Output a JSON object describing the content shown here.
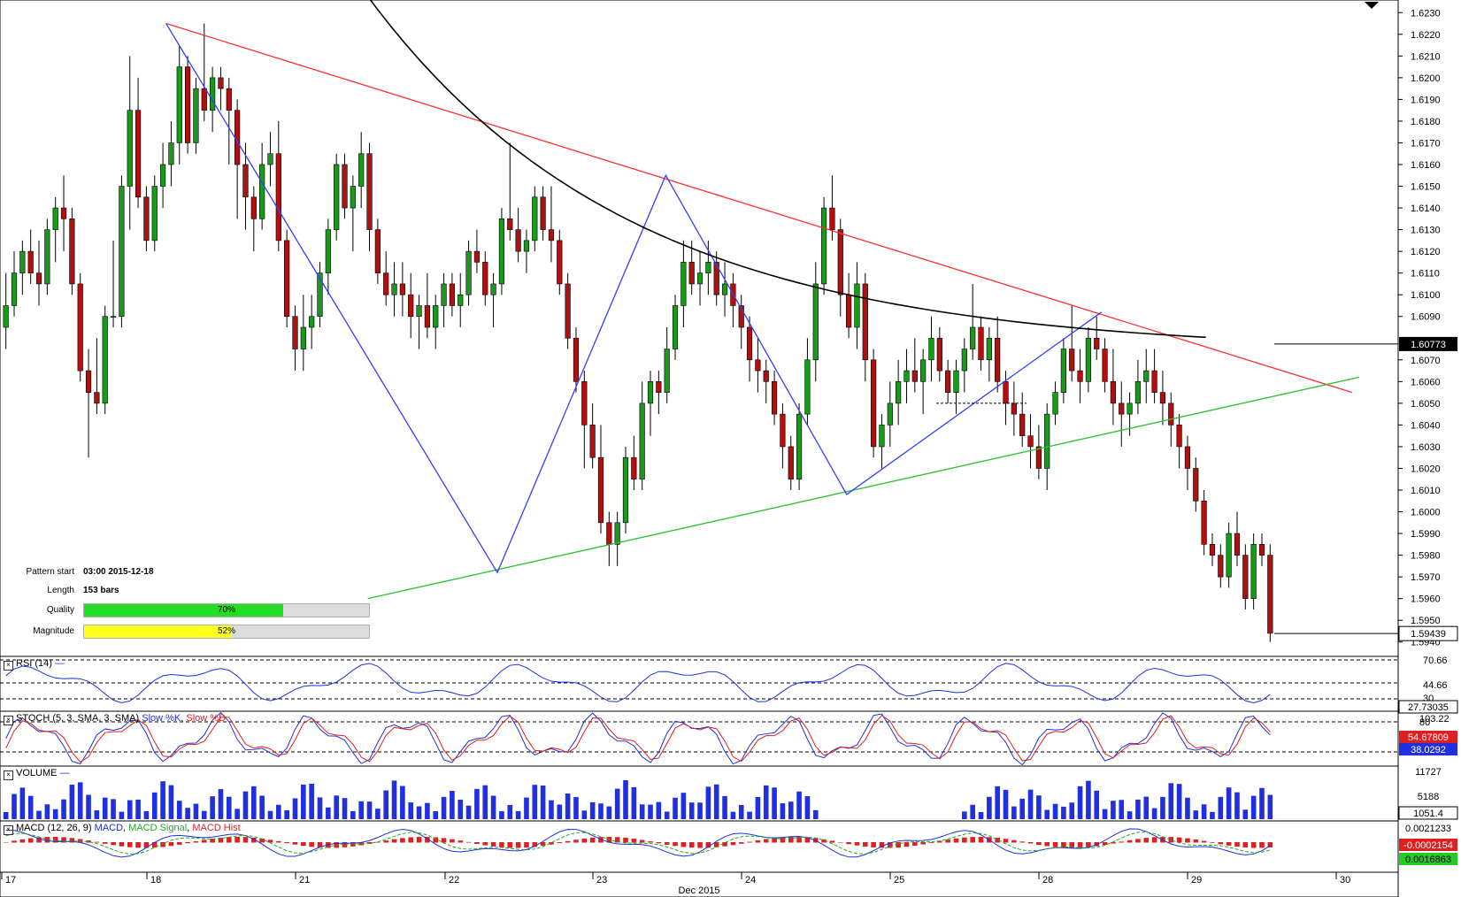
{
  "chart_data": {
    "type": "candlestick",
    "instrument_price_axis": [
      "1.6230",
      "1.6220",
      "1.6210",
      "1.6200",
      "1.6190",
      "1.6180",
      "1.6170",
      "1.6160",
      "1.6150",
      "1.6140",
      "1.6130",
      "1.6120",
      "1.6110",
      "1.6100",
      "1.6090",
      "1.6070",
      "1.6060",
      "1.6050",
      "1.6040",
      "1.6030",
      "1.6020",
      "1.6010",
      "1.6000",
      "1.5990",
      "1.5980",
      "1.5970",
      "1.5960",
      "1.5950",
      "1.5940"
    ],
    "ylim": [
      1.5935,
      1.6235
    ],
    "x_ticks": [
      "17",
      "18",
      "21",
      "22",
      "23",
      "24",
      "25",
      "28",
      "29",
      "30"
    ],
    "x_month_label": "Dec 2015",
    "price_tags": {
      "sma_last": "1.60773",
      "last_price": "1.59439"
    },
    "candles": [
      [
        1.6085,
        1.611,
        1.6075,
        1.6095
      ],
      [
        1.6095,
        1.612,
        1.609,
        1.611
      ],
      [
        1.611,
        1.6125,
        1.61,
        1.612
      ],
      [
        1.612,
        1.613,
        1.6105,
        1.611
      ],
      [
        1.611,
        1.6125,
        1.6095,
        1.6105
      ],
      [
        1.6105,
        1.6135,
        1.61,
        1.613
      ],
      [
        1.613,
        1.6145,
        1.6115,
        1.614
      ],
      [
        1.614,
        1.6155,
        1.612,
        1.6135
      ],
      [
        1.6135,
        1.614,
        1.61,
        1.6105
      ],
      [
        1.6105,
        1.611,
        1.606,
        1.6065
      ],
      [
        1.6065,
        1.6075,
        1.6025,
        1.6055
      ],
      [
        1.6055,
        1.608,
        1.6045,
        1.605
      ],
      [
        1.605,
        1.6095,
        1.6045,
        1.609
      ],
      [
        1.609,
        1.6125,
        1.6085,
        1.609
      ],
      [
        1.609,
        1.6155,
        1.6085,
        1.615
      ],
      [
        1.615,
        1.621,
        1.613,
        1.6185
      ],
      [
        1.6185,
        1.62,
        1.614,
        1.6145
      ],
      [
        1.6145,
        1.615,
        1.612,
        1.6125
      ],
      [
        1.6125,
        1.6155,
        1.612,
        1.615
      ],
      [
        1.615,
        1.617,
        1.614,
        1.616
      ],
      [
        1.616,
        1.618,
        1.615,
        1.617
      ],
      [
        1.617,
        1.6215,
        1.616,
        1.6205
      ],
      [
        1.6205,
        1.621,
        1.6165,
        1.617
      ],
      [
        1.617,
        1.62,
        1.6165,
        1.6195
      ],
      [
        1.6195,
        1.6225,
        1.618,
        1.6185
      ],
      [
        1.6185,
        1.6205,
        1.6175,
        1.62
      ],
      [
        1.62,
        1.6205,
        1.6185,
        1.6195
      ],
      [
        1.6195,
        1.62,
        1.616,
        1.6185
      ],
      [
        1.6185,
        1.619,
        1.6135,
        1.616
      ],
      [
        1.616,
        1.617,
        1.613,
        1.6145
      ],
      [
        1.6145,
        1.615,
        1.612,
        1.6135
      ],
      [
        1.6135,
        1.617,
        1.613,
        1.616
      ],
      [
        1.616,
        1.6175,
        1.615,
        1.6165
      ],
      [
        1.6165,
        1.618,
        1.612,
        1.6125
      ],
      [
        1.6125,
        1.613,
        1.6085,
        1.609
      ],
      [
        1.609,
        1.6095,
        1.6065,
        1.6075
      ],
      [
        1.6075,
        1.61,
        1.6065,
        1.6085
      ],
      [
        1.6085,
        1.61,
        1.6075,
        1.609
      ],
      [
        1.609,
        1.6115,
        1.6085,
        1.611
      ],
      [
        1.611,
        1.6135,
        1.61,
        1.613
      ],
      [
        1.613,
        1.6165,
        1.6125,
        1.616
      ],
      [
        1.616,
        1.6165,
        1.6135,
        1.614
      ],
      [
        1.614,
        1.6155,
        1.612,
        1.615
      ],
      [
        1.615,
        1.6175,
        1.614,
        1.6165
      ],
      [
        1.6165,
        1.617,
        1.612,
        1.613
      ],
      [
        1.613,
        1.6135,
        1.6105,
        1.611
      ],
      [
        1.611,
        1.612,
        1.6095,
        1.61
      ],
      [
        1.61,
        1.6115,
        1.609,
        1.6105
      ],
      [
        1.6105,
        1.6115,
        1.609,
        1.61
      ],
      [
        1.61,
        1.611,
        1.608,
        1.609
      ],
      [
        1.609,
        1.61,
        1.6075,
        1.6095
      ],
      [
        1.6095,
        1.611,
        1.608,
        1.6085
      ],
      [
        1.6085,
        1.61,
        1.6075,
        1.6095
      ],
      [
        1.6095,
        1.611,
        1.6085,
        1.6105
      ],
      [
        1.6105,
        1.611,
        1.609,
        1.6095
      ],
      [
        1.6095,
        1.611,
        1.6085,
        1.61
      ],
      [
        1.61,
        1.6125,
        1.6095,
        1.612
      ],
      [
        1.612,
        1.613,
        1.611,
        1.6115
      ],
      [
        1.6115,
        1.612,
        1.6095,
        1.61
      ],
      [
        1.61,
        1.611,
        1.6085,
        1.6105
      ],
      [
        1.6105,
        1.614,
        1.61,
        1.6135
      ],
      [
        1.6135,
        1.617,
        1.6125,
        1.613
      ],
      [
        1.613,
        1.614,
        1.6115,
        1.612
      ],
      [
        1.612,
        1.613,
        1.611,
        1.6125
      ],
      [
        1.6125,
        1.615,
        1.612,
        1.6145
      ],
      [
        1.6145,
        1.615,
        1.6125,
        1.613
      ],
      [
        1.613,
        1.615,
        1.6115,
        1.6125
      ],
      [
        1.6125,
        1.613,
        1.61,
        1.6105
      ],
      [
        1.6105,
        1.611,
        1.6075,
        1.608
      ],
      [
        1.608,
        1.6085,
        1.6055,
        1.606
      ],
      [
        1.606,
        1.6065,
        1.602,
        1.604
      ],
      [
        1.604,
        1.605,
        1.602,
        1.6025
      ],
      [
        1.6025,
        1.604,
        1.599,
        1.5995
      ],
      [
        1.5995,
        1.6,
        1.5975,
        1.5985
      ],
      [
        1.5985,
        1.6,
        1.5975,
        1.5995
      ],
      [
        1.5995,
        1.603,
        1.599,
        1.6025
      ],
      [
        1.6025,
        1.6035,
        1.601,
        1.6015
      ],
      [
        1.6015,
        1.606,
        1.601,
        1.605
      ],
      [
        1.605,
        1.6065,
        1.6035,
        1.606
      ],
      [
        1.606,
        1.6065,
        1.6045,
        1.6055
      ],
      [
        1.6055,
        1.6085,
        1.605,
        1.6075
      ],
      [
        1.6075,
        1.61,
        1.607,
        1.6095
      ],
      [
        1.6095,
        1.6125,
        1.6085,
        1.6115
      ],
      [
        1.6115,
        1.6125,
        1.61,
        1.6105
      ],
      [
        1.6105,
        1.612,
        1.6095,
        1.611
      ],
      [
        1.611,
        1.6125,
        1.61,
        1.6115
      ],
      [
        1.6115,
        1.612,
        1.6095,
        1.61
      ],
      [
        1.61,
        1.6115,
        1.609,
        1.6105
      ],
      [
        1.6105,
        1.611,
        1.6085,
        1.6095
      ],
      [
        1.6095,
        1.61,
        1.6075,
        1.6085
      ],
      [
        1.6085,
        1.609,
        1.606,
        1.607
      ],
      [
        1.607,
        1.608,
        1.6055,
        1.6065
      ],
      [
        1.6065,
        1.607,
        1.605,
        1.606
      ],
      [
        1.606,
        1.6065,
        1.604,
        1.6045
      ],
      [
        1.6045,
        1.605,
        1.602,
        1.603
      ],
      [
        1.603,
        1.6035,
        1.601,
        1.6015
      ],
      [
        1.6015,
        1.605,
        1.601,
        1.6045
      ],
      [
        1.6045,
        1.608,
        1.604,
        1.607
      ],
      [
        1.607,
        1.6115,
        1.606,
        1.6105
      ],
      [
        1.6105,
        1.6145,
        1.61,
        1.614
      ],
      [
        1.614,
        1.6155,
        1.6125,
        1.613
      ],
      [
        1.613,
        1.6135,
        1.609,
        1.61
      ],
      [
        1.61,
        1.611,
        1.608,
        1.6085
      ],
      [
        1.6085,
        1.6115,
        1.6075,
        1.6105
      ],
      [
        1.6105,
        1.611,
        1.606,
        1.607
      ],
      [
        1.607,
        1.6075,
        1.6025,
        1.603
      ],
      [
        1.603,
        1.6045,
        1.602,
        1.604
      ],
      [
        1.604,
        1.606,
        1.603,
        1.605
      ],
      [
        1.605,
        1.607,
        1.604,
        1.606
      ],
      [
        1.606,
        1.6075,
        1.605,
        1.6065
      ],
      [
        1.6065,
        1.608,
        1.6055,
        1.606
      ],
      [
        1.606,
        1.6075,
        1.6045,
        1.607
      ],
      [
        1.607,
        1.609,
        1.606,
        1.608
      ],
      [
        1.608,
        1.6085,
        1.606,
        1.6065
      ],
      [
        1.6065,
        1.607,
        1.605,
        1.6055
      ],
      [
        1.6055,
        1.607,
        1.6045,
        1.6065
      ],
      [
        1.6065,
        1.608,
        1.6055,
        1.6075
      ],
      [
        1.6075,
        1.6105,
        1.607,
        1.6085
      ],
      [
        1.6085,
        1.609,
        1.6065,
        1.607
      ],
      [
        1.607,
        1.6085,
        1.606,
        1.608
      ],
      [
        1.608,
        1.609,
        1.6055,
        1.606
      ],
      [
        1.606,
        1.6065,
        1.604,
        1.605
      ],
      [
        1.605,
        1.606,
        1.6035,
        1.6045
      ],
      [
        1.6045,
        1.6055,
        1.603,
        1.6035
      ],
      [
        1.6035,
        1.6045,
        1.602,
        1.603
      ],
      [
        1.603,
        1.604,
        1.6015,
        1.602
      ],
      [
        1.602,
        1.605,
        1.601,
        1.6045
      ],
      [
        1.6045,
        1.606,
        1.604,
        1.6055
      ],
      [
        1.6055,
        1.608,
        1.605,
        1.6075
      ],
      [
        1.6075,
        1.6095,
        1.606,
        1.6065
      ],
      [
        1.6065,
        1.6075,
        1.605,
        1.606
      ],
      [
        1.606,
        1.6085,
        1.6055,
        1.608
      ],
      [
        1.608,
        1.609,
        1.607,
        1.6075
      ],
      [
        1.6075,
        1.608,
        1.6055,
        1.606
      ],
      [
        1.606,
        1.6075,
        1.604,
        1.605
      ],
      [
        1.605,
        1.606,
        1.603,
        1.6045
      ],
      [
        1.6045,
        1.6055,
        1.6035,
        1.605
      ],
      [
        1.605,
        1.607,
        1.6045,
        1.606
      ],
      [
        1.606,
        1.6075,
        1.605,
        1.6065
      ],
      [
        1.6065,
        1.6075,
        1.605,
        1.6055
      ],
      [
        1.6055,
        1.6065,
        1.604,
        1.605
      ],
      [
        1.605,
        1.6055,
        1.603,
        1.604
      ],
      [
        1.604,
        1.6045,
        1.602,
        1.603
      ],
      [
        1.603,
        1.6035,
        1.601,
        1.602
      ],
      [
        1.602,
        1.6025,
        1.6,
        1.6005
      ],
      [
        1.6005,
        1.601,
        1.598,
        1.5985
      ],
      [
        1.5985,
        1.599,
        1.5975,
        1.598
      ],
      [
        1.598,
        1.5985,
        1.5965,
        1.597
      ],
      [
        1.597,
        1.5995,
        1.5965,
        1.599
      ],
      [
        1.599,
        1.6,
        1.5975,
        1.598
      ],
      [
        1.598,
        1.5985,
        1.5955,
        1.596
      ],
      [
        1.596,
        1.599,
        1.5955,
        1.5985
      ],
      [
        1.5985,
        1.599,
        1.5975,
        1.598
      ],
      [
        1.598,
        1.5985,
        1.594,
        1.5944
      ]
    ],
    "trendlines": [
      {
        "name": "upper-resistance",
        "color": "#ff3030",
        "points": [
          [
            0.118,
            1.6225
          ],
          [
            0.97,
            1.6055
          ]
        ]
      },
      {
        "name": "lower-support",
        "color": "#30c030",
        "points": [
          [
            0.263,
            1.596
          ],
          [
            0.975,
            1.6062
          ]
        ]
      }
    ],
    "zigzag": {
      "color": "#3040ff",
      "points": [
        [
          0.118,
          1.6225
        ],
        [
          0.356,
          1.5972
        ],
        [
          0.477,
          1.6155
        ],
        [
          0.607,
          1.6008
        ],
        [
          0.79,
          1.6092
        ]
      ]
    },
    "sma_200_color": "#000000",
    "panels": {
      "rsi": {
        "label": "RSI (14)",
        "levels": [
          "70.66",
          "44.66",
          "30"
        ],
        "last": "27.73035"
      },
      "stoch": {
        "label": "STOCH (5, 3, SMA, 3, SMA)",
        "slow_k": "Slow %K",
        "slow_d": "Slow %D",
        "levels": [
          "103.22",
          "80",
          "20"
        ],
        "last_k": "54.67809",
        "last_d": "38.0292"
      },
      "volume": {
        "label": "VOLUME",
        "levels": [
          "11727",
          "5188"
        ],
        "last": "1051.4"
      },
      "macd": {
        "label": "MACD (12, 26, 9)",
        "macd": "MACD",
        "signal": "MACD Signal",
        "hist": "MACD Hist",
        "levels": [
          "0.0021233"
        ],
        "last_hist": "-0.0002154",
        "last_signal": "0.0016863"
      }
    }
  },
  "pattern_info": {
    "start_label": "Pattern start",
    "start_value": "03:00 2015-12-18",
    "length_label": "Length",
    "length_value": "153 bars",
    "quality_label": "Quality",
    "quality_pct": 70,
    "quality_text": "70%",
    "magnitude_label": "Magnitude",
    "magnitude_pct": 52,
    "magnitude_text": "52%"
  },
  "colors": {
    "bull": "#1a9a1a",
    "bear": "#b01010",
    "quality_bar": "#22dd22",
    "magnitude_bar": "#ffff22",
    "blue_line": "#2030e0",
    "red_line": "#e02020"
  }
}
